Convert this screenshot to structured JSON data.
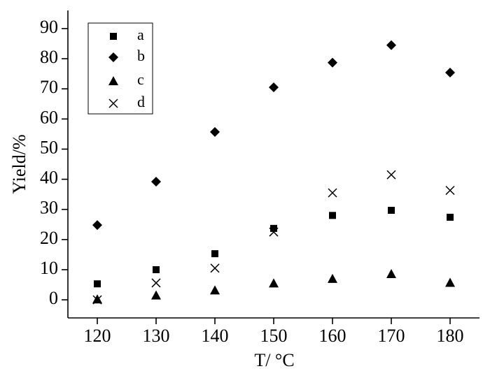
{
  "chart_data": {
    "type": "scatter",
    "x_label": "T/ °C",
    "y_label": "Yield/%",
    "x": [
      120,
      130,
      140,
      150,
      160,
      170,
      180
    ],
    "series": [
      {
        "name": "a",
        "color": "#000000",
        "marker": "square",
        "values": [
          5.3,
          10,
          15.3,
          23.7,
          28,
          29.7,
          27.4
        ]
      },
      {
        "name": "b",
        "color": "#000000",
        "marker": "diamond",
        "values": [
          24.8,
          39.2,
          55.7,
          70.5,
          78.7,
          84.5,
          75.4
        ]
      },
      {
        "name": "c",
        "color": "#000000",
        "marker": "triangle",
        "values": [
          0.2,
          1.5,
          3.2,
          5.5,
          7,
          8.6,
          5.7
        ]
      },
      {
        "name": "d",
        "color": "#000000",
        "marker": "cross",
        "values": [
          0,
          5.6,
          10.5,
          22.5,
          35.5,
          41.5,
          36.3
        ]
      }
    ],
    "xlim": [
      115,
      185
    ],
    "xticks": [
      120,
      130,
      140,
      150,
      160,
      170,
      180
    ],
    "ylim": [
      -6,
      96
    ],
    "yticks": [
      0,
      10,
      20,
      30,
      40,
      50,
      60,
      70,
      80,
      90
    ],
    "legend": "upper-left",
    "grid": false
  }
}
